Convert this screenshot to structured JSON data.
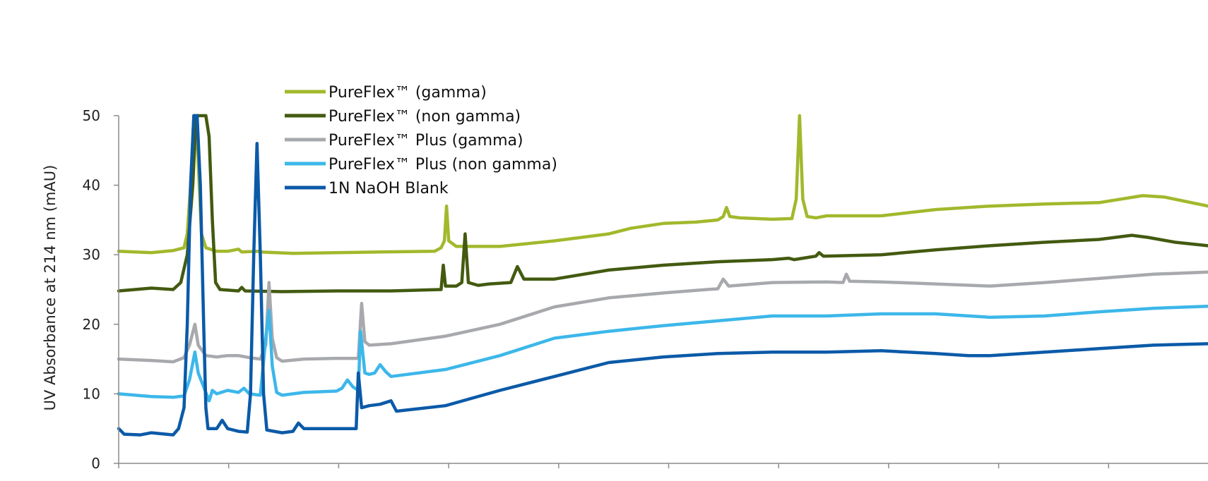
{
  "chart_data": {
    "type": "line",
    "title": "",
    "xlabel": "",
    "ylabel": "UV Absorbance at 214 nm (mAU)",
    "ylim": [
      0,
      50
    ],
    "xlim": [
      0,
      100
    ],
    "yticks": [
      0,
      10,
      20,
      30,
      40,
      50
    ],
    "xtick_count": 10,
    "grid": false,
    "legend_position": "top-left",
    "series": [
      {
        "name": "PureFlex™ (gamma)",
        "color": "#a3b82c",
        "points": [
          [
            0,
            30.5
          ],
          [
            3,
            30.3
          ],
          [
            5,
            30.6
          ],
          [
            6,
            31
          ],
          [
            6.3,
            33
          ],
          [
            6.6,
            40
          ],
          [
            6.9,
            50
          ],
          [
            7.1,
            50
          ],
          [
            7.4,
            40
          ],
          [
            7.6,
            33
          ],
          [
            8,
            31
          ],
          [
            9,
            30.5
          ],
          [
            10,
            30.5
          ],
          [
            11,
            30.8
          ],
          [
            11.3,
            30.4
          ],
          [
            12.8,
            30.5
          ],
          [
            13,
            30.4
          ],
          [
            16,
            30.2
          ],
          [
            20,
            30.3
          ],
          [
            24,
            30.4
          ],
          [
            29,
            30.5
          ],
          [
            29.6,
            31
          ],
          [
            29.9,
            32
          ],
          [
            30.1,
            37
          ],
          [
            30.3,
            32
          ],
          [
            31,
            31.2
          ],
          [
            35,
            31.2
          ],
          [
            40,
            32
          ],
          [
            45,
            33
          ],
          [
            47,
            33.8
          ],
          [
            50,
            34.5
          ],
          [
            53,
            34.7
          ],
          [
            55,
            35
          ],
          [
            55.5,
            35.5
          ],
          [
            55.8,
            36.8
          ],
          [
            56.1,
            35.5
          ],
          [
            57,
            35.3
          ],
          [
            60,
            35.1
          ],
          [
            61.8,
            35.2
          ],
          [
            62.2,
            38
          ],
          [
            62.5,
            50
          ],
          [
            62.8,
            38
          ],
          [
            63.2,
            35.5
          ],
          [
            64,
            35.3
          ],
          [
            65,
            35.6
          ],
          [
            70,
            35.6
          ],
          [
            75,
            36.5
          ],
          [
            80,
            37
          ],
          [
            85,
            37.3
          ],
          [
            90,
            37.5
          ],
          [
            94,
            38.5
          ],
          [
            96,
            38.3
          ],
          [
            100,
            37
          ]
        ]
      },
      {
        "name": "PureFlex™ (non gamma)",
        "color": "#435a10",
        "points": [
          [
            0,
            24.8
          ],
          [
            3,
            25.2
          ],
          [
            5,
            25
          ],
          [
            5.7,
            26
          ],
          [
            6.3,
            30
          ],
          [
            6.8,
            40
          ],
          [
            7.1,
            50
          ],
          [
            8,
            50
          ],
          [
            8.3,
            47
          ],
          [
            8.6,
            35
          ],
          [
            8.9,
            26
          ],
          [
            9.3,
            25
          ],
          [
            11,
            24.8
          ],
          [
            11.3,
            25.3
          ],
          [
            11.6,
            24.8
          ],
          [
            15,
            24.7
          ],
          [
            20,
            24.8
          ],
          [
            25,
            24.8
          ],
          [
            29.6,
            25
          ],
          [
            29.8,
            28.5
          ],
          [
            30,
            25.5
          ],
          [
            31,
            25.5
          ],
          [
            31.5,
            26
          ],
          [
            31.8,
            33
          ],
          [
            32.1,
            26
          ],
          [
            33,
            25.6
          ],
          [
            34,
            25.8
          ],
          [
            36,
            26
          ],
          [
            36.6,
            28.3
          ],
          [
            37.2,
            26.5
          ],
          [
            40,
            26.5
          ],
          [
            45,
            27.8
          ],
          [
            50,
            28.5
          ],
          [
            55,
            29
          ],
          [
            60,
            29.3
          ],
          [
            61.5,
            29.5
          ],
          [
            62,
            29.3
          ],
          [
            64,
            29.8
          ],
          [
            64.3,
            30.3
          ],
          [
            64.7,
            29.8
          ],
          [
            70,
            30
          ],
          [
            75,
            30.7
          ],
          [
            80,
            31.3
          ],
          [
            85,
            31.8
          ],
          [
            90,
            32.2
          ],
          [
            93,
            32.8
          ],
          [
            94.5,
            32.5
          ],
          [
            97,
            31.8
          ],
          [
            100,
            31.3
          ]
        ]
      },
      {
        "name": "PureFlex™ Plus (gamma)",
        "color": "#a7a9ac",
        "points": [
          [
            0,
            15
          ],
          [
            3,
            14.8
          ],
          [
            5,
            14.6
          ],
          [
            6,
            15.2
          ],
          [
            6.5,
            17
          ],
          [
            7,
            20
          ],
          [
            7.3,
            17
          ],
          [
            8,
            15.5
          ],
          [
            9,
            15.3
          ],
          [
            10,
            15.5
          ],
          [
            11,
            15.5
          ],
          [
            12,
            15.2
          ],
          [
            13,
            15
          ],
          [
            13.5,
            17
          ],
          [
            13.8,
            26
          ],
          [
            14.1,
            18
          ],
          [
            14.5,
            15.2
          ],
          [
            15,
            14.7
          ],
          [
            17,
            15
          ],
          [
            20,
            15.1
          ],
          [
            22,
            15.1
          ],
          [
            22.3,
            23
          ],
          [
            22.6,
            17.5
          ],
          [
            23,
            17
          ],
          [
            25,
            17.2
          ],
          [
            30,
            18.3
          ],
          [
            35,
            20
          ],
          [
            40,
            22.5
          ],
          [
            45,
            23.8
          ],
          [
            50,
            24.5
          ],
          [
            54,
            25
          ],
          [
            55,
            25.1
          ],
          [
            55.5,
            26.5
          ],
          [
            56,
            25.5
          ],
          [
            60,
            26
          ],
          [
            65,
            26.1
          ],
          [
            66.5,
            26
          ],
          [
            66.8,
            27.2
          ],
          [
            67.1,
            26.2
          ],
          [
            70,
            26.1
          ],
          [
            75,
            25.8
          ],
          [
            80,
            25.5
          ],
          [
            85,
            26
          ],
          [
            90,
            26.6
          ],
          [
            95,
            27.2
          ],
          [
            100,
            27.5
          ]
        ]
      },
      {
        "name": "PureFlex™ Plus (non gamma)",
        "color": "#3cb7ea",
        "points": [
          [
            0,
            10
          ],
          [
            3,
            9.6
          ],
          [
            5,
            9.5
          ],
          [
            6,
            9.7
          ],
          [
            6.5,
            12
          ],
          [
            7,
            16
          ],
          [
            7.3,
            13
          ],
          [
            8,
            10.2
          ],
          [
            8.3,
            9
          ],
          [
            8.6,
            10.5
          ],
          [
            9,
            10
          ],
          [
            10,
            10.5
          ],
          [
            11,
            10.2
          ],
          [
            11.5,
            10.8
          ],
          [
            12,
            10
          ],
          [
            13,
            9.8
          ],
          [
            13.5,
            18
          ],
          [
            13.8,
            22
          ],
          [
            14.1,
            14
          ],
          [
            14.5,
            10.2
          ],
          [
            15,
            9.8
          ],
          [
            17,
            10.2
          ],
          [
            20,
            10.4
          ],
          [
            20.5,
            10.8
          ],
          [
            21,
            12
          ],
          [
            21.5,
            11
          ],
          [
            22,
            10.5
          ],
          [
            22.2,
            19
          ],
          [
            22.6,
            13
          ],
          [
            23,
            12.8
          ],
          [
            23.5,
            13
          ],
          [
            24,
            14.2
          ],
          [
            24.5,
            13.2
          ],
          [
            25,
            12.5
          ],
          [
            30,
            13.5
          ],
          [
            35,
            15.5
          ],
          [
            40,
            18
          ],
          [
            45,
            19
          ],
          [
            50,
            19.8
          ],
          [
            55,
            20.5
          ],
          [
            60,
            21.2
          ],
          [
            65,
            21.2
          ],
          [
            70,
            21.5
          ],
          [
            75,
            21.5
          ],
          [
            80,
            21
          ],
          [
            85,
            21.2
          ],
          [
            90,
            21.8
          ],
          [
            95,
            22.3
          ],
          [
            100,
            22.6
          ]
        ]
      },
      {
        "name": "1N NaOH Blank",
        "color": "#0b5aa8",
        "points": [
          [
            0,
            5
          ],
          [
            0.5,
            4.2
          ],
          [
            2,
            4.1
          ],
          [
            3,
            4.4
          ],
          [
            5,
            4.1
          ],
          [
            5.5,
            5
          ],
          [
            6,
            8
          ],
          [
            6.3,
            20
          ],
          [
            6.6,
            40
          ],
          [
            6.9,
            50
          ],
          [
            7.2,
            50
          ],
          [
            7.5,
            40
          ],
          [
            7.8,
            20
          ],
          [
            8,
            8
          ],
          [
            8.2,
            5
          ],
          [
            9,
            5
          ],
          [
            9.5,
            6.2
          ],
          [
            10,
            5
          ],
          [
            11,
            4.6
          ],
          [
            11.8,
            4.5
          ],
          [
            12.1,
            10
          ],
          [
            12.4,
            30
          ],
          [
            12.7,
            46
          ],
          [
            13,
            30
          ],
          [
            13.3,
            10
          ],
          [
            13.6,
            4.8
          ],
          [
            15,
            4.4
          ],
          [
            16,
            4.6
          ],
          [
            16.5,
            5.8
          ],
          [
            17,
            5
          ],
          [
            20,
            5
          ],
          [
            21.8,
            5
          ],
          [
            22,
            13
          ],
          [
            22.3,
            8
          ],
          [
            23,
            8.3
          ],
          [
            24,
            8.5
          ],
          [
            25,
            9
          ],
          [
            25.5,
            7.5
          ],
          [
            30,
            8.3
          ],
          [
            35,
            10.5
          ],
          [
            40,
            12.5
          ],
          [
            45,
            14.5
          ],
          [
            50,
            15.3
          ],
          [
            55,
            15.8
          ],
          [
            60,
            16
          ],
          [
            65,
            16
          ],
          [
            70,
            16.2
          ],
          [
            75,
            15.8
          ],
          [
            78,
            15.5
          ],
          [
            80,
            15.5
          ],
          [
            85,
            16
          ],
          [
            90,
            16.5
          ],
          [
            95,
            17
          ],
          [
            100,
            17.2
          ]
        ]
      }
    ]
  }
}
